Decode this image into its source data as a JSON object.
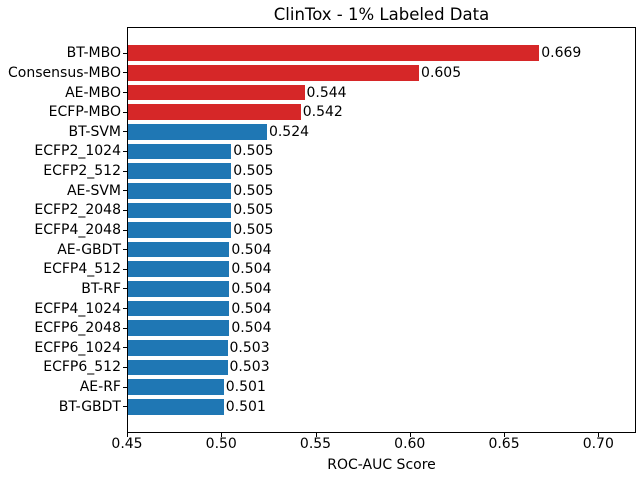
{
  "title": "ClinTox - 1% Labeled Data",
  "chart_data": {
    "type": "bar",
    "orientation": "horizontal",
    "title": "ClinTox - 1% Labeled Data",
    "xlabel": "ROC-AUC Score",
    "ylabel": "",
    "xlim": [
      0.45,
      0.72
    ],
    "xticks": [
      0.45,
      0.5,
      0.55,
      0.6,
      0.65,
      0.7
    ],
    "xtick_labels": [
      "0.45",
      "0.50",
      "0.55",
      "0.60",
      "0.65",
      "0.70"
    ],
    "grid": false,
    "legend": null,
    "highlight_color": "#d62728",
    "default_color": "#1f77b4",
    "categories": [
      "BT-MBO",
      "Consensus-MBO",
      "AE-MBO",
      "ECFP-MBO",
      "BT-SVM",
      "ECFP2_1024",
      "ECFP2_512",
      "AE-SVM",
      "ECFP2_2048",
      "ECFP4_2048",
      "AE-GBDT",
      "ECFP4_512",
      "BT-RF",
      "ECFP4_1024",
      "ECFP6_2048",
      "ECFP6_1024",
      "ECFP6_512",
      "AE-RF",
      "BT-GBDT"
    ],
    "values": [
      0.669,
      0.605,
      0.544,
      0.542,
      0.524,
      0.505,
      0.505,
      0.505,
      0.505,
      0.505,
      0.504,
      0.504,
      0.504,
      0.504,
      0.504,
      0.503,
      0.503,
      0.501,
      0.501
    ],
    "value_labels": [
      "0.669",
      "0.605",
      "0.544",
      "0.542",
      "0.524",
      "0.505",
      "0.505",
      "0.505",
      "0.505",
      "0.505",
      "0.504",
      "0.504",
      "0.504",
      "0.504",
      "0.504",
      "0.503",
      "0.503",
      "0.501",
      "0.501"
    ],
    "colors": [
      "#d62728",
      "#d62728",
      "#d62728",
      "#d62728",
      "#1f77b4",
      "#1f77b4",
      "#1f77b4",
      "#1f77b4",
      "#1f77b4",
      "#1f77b4",
      "#1f77b4",
      "#1f77b4",
      "#1f77b4",
      "#1f77b4",
      "#1f77b4",
      "#1f77b4",
      "#1f77b4",
      "#1f77b4",
      "#1f77b4"
    ]
  }
}
